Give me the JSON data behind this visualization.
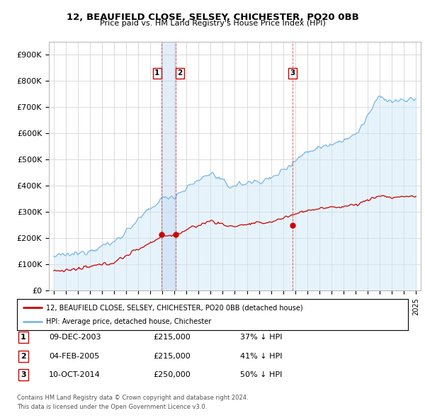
{
  "title": "12, BEAUFIELD CLOSE, SELSEY, CHICHESTER, PO20 0BB",
  "subtitle": "Price paid vs. HM Land Registry's House Price Index (HPI)",
  "ylim": [
    0,
    950000
  ],
  "yticks": [
    0,
    100000,
    200000,
    300000,
    400000,
    500000,
    600000,
    700000,
    800000,
    900000
  ],
  "ytick_labels": [
    "£0",
    "£100K",
    "£200K",
    "£300K",
    "£400K",
    "£500K",
    "£600K",
    "£700K",
    "£800K",
    "£900K"
  ],
  "hpi_color": "#7ab8e8",
  "hpi_fill_color": "#d0e8f8",
  "price_color": "#cc0000",
  "vline_color": "#cc0000",
  "grid_color": "#cccccc",
  "background_color": "#ffffff",
  "xmin": 1995,
  "xmax": 2025,
  "sale_dates": [
    2003.92,
    2005.09,
    2014.78
  ],
  "sale_prices": [
    215000,
    215000,
    250000
  ],
  "sale_labels": [
    "1",
    "2",
    "3"
  ],
  "legend_line1": "12, BEAUFIELD CLOSE, SELSEY, CHICHESTER, PO20 0BB (detached house)",
  "legend_line2": "HPI: Average price, detached house, Chichester",
  "table_rows": [
    [
      "1",
      "09-DEC-2003",
      "£215,000",
      "37% ↓ HPI"
    ],
    [
      "2",
      "04-FEB-2005",
      "£215,000",
      "41% ↓ HPI"
    ],
    [
      "3",
      "10-OCT-2014",
      "£250,000",
      "50% ↓ HPI"
    ]
  ],
  "footer1": "Contains HM Land Registry data © Crown copyright and database right 2024.",
  "footer2": "This data is licensed under the Open Government Licence v3.0."
}
